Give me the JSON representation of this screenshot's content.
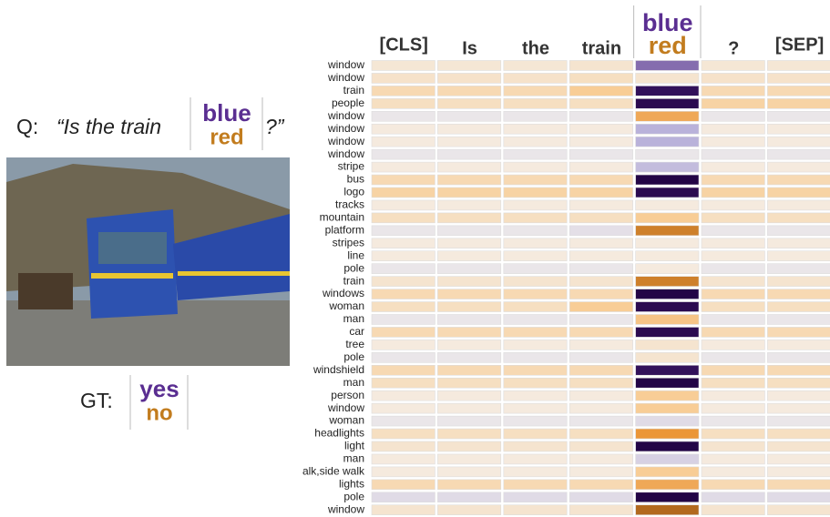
{
  "question": {
    "prefix": "Q:",
    "text": "“Is the train",
    "options": [
      "blue",
      "red"
    ],
    "suffix": "?”"
  },
  "ground_truth": {
    "label": "GT:",
    "options": [
      "yes",
      "no"
    ]
  },
  "chart_data": {
    "type": "heatmap",
    "columns": [
      "[CLS]",
      "Is",
      "the",
      "train",
      [
        "blue",
        "red"
      ],
      "?",
      "[SEP]"
    ],
    "rows": [
      "window",
      "window",
      "train",
      "people",
      "window",
      "window",
      "window",
      "window",
      "stripe",
      "bus",
      "logo",
      "tracks",
      "mountain",
      "platform",
      "stripes",
      "line",
      "pole",
      "train",
      "windows",
      "woman",
      "man",
      "car",
      "tree",
      "pole",
      "windshield",
      "man",
      "person",
      "window",
      "woman",
      "headlights",
      "light",
      "man",
      "alk,side walk",
      "lights",
      "pole",
      "window"
    ],
    "values": [
      [
        0.08,
        0.08,
        0.08,
        0.1,
        -0.5,
        0.08,
        0.08
      ],
      [
        0.12,
        0.12,
        0.12,
        0.15,
        0.1,
        0.12,
        0.12
      ],
      [
        0.2,
        0.2,
        0.2,
        0.3,
        -0.9,
        0.2,
        0.2
      ],
      [
        0.15,
        0.15,
        0.15,
        0.15,
        -0.95,
        0.25,
        0.25
      ],
      [
        -0.05,
        -0.05,
        -0.05,
        -0.05,
        0.5,
        -0.05,
        -0.05
      ],
      [
        0.05,
        0.05,
        0.05,
        0.05,
        -0.3,
        0.05,
        0.05
      ],
      [
        0.05,
        0.05,
        0.05,
        0.05,
        -0.3,
        0.05,
        0.05
      ],
      [
        -0.05,
        -0.05,
        -0.05,
        -0.05,
        -0.05,
        -0.05,
        -0.05
      ],
      [
        0.05,
        0.05,
        0.05,
        0.05,
        -0.25,
        0.05,
        0.05
      ],
      [
        0.2,
        0.2,
        0.2,
        0.2,
        -1,
        0.2,
        0.2
      ],
      [
        0.25,
        0.25,
        0.25,
        0.25,
        -0.95,
        0.25,
        0.25
      ],
      [
        0.05,
        0.05,
        0.05,
        0.05,
        0.05,
        0.05,
        0.05
      ],
      [
        0.15,
        0.15,
        0.15,
        0.15,
        0.3,
        0.15,
        0.15
      ],
      [
        -0.05,
        -0.05,
        -0.05,
        -0.08,
        0.7,
        -0.05,
        -0.05
      ],
      [
        0.05,
        0.05,
        0.05,
        0.05,
        0.05,
        0.05,
        0.05
      ],
      [
        0.05,
        0.05,
        0.05,
        0.05,
        0.05,
        0.05,
        0.05
      ],
      [
        -0.05,
        -0.05,
        -0.05,
        -0.05,
        0.05,
        -0.05,
        -0.05
      ],
      [
        0.1,
        0.1,
        0.1,
        0.1,
        0.7,
        0.1,
        0.1
      ],
      [
        0.2,
        0.2,
        0.2,
        0.2,
        -1,
        0.2,
        0.2
      ],
      [
        0.15,
        0.15,
        0.15,
        0.3,
        -0.95,
        0.15,
        0.15
      ],
      [
        -0.05,
        -0.05,
        -0.05,
        -0.05,
        0.35,
        -0.05,
        -0.05
      ],
      [
        0.2,
        0.2,
        0.2,
        0.2,
        -0.95,
        0.2,
        0.2
      ],
      [
        0.05,
        0.05,
        0.05,
        0.05,
        0.1,
        0.05,
        0.05
      ],
      [
        -0.05,
        -0.05,
        -0.05,
        -0.05,
        0.1,
        -0.05,
        -0.05
      ],
      [
        0.2,
        0.2,
        0.2,
        0.2,
        -0.9,
        0.2,
        0.2
      ],
      [
        0.15,
        0.15,
        0.15,
        0.15,
        -1,
        0.15,
        0.15
      ],
      [
        0.05,
        0.05,
        0.05,
        0.05,
        0.3,
        0.05,
        0.05
      ],
      [
        0.05,
        0.05,
        0.05,
        0.05,
        0.3,
        0.05,
        0.05
      ],
      [
        -0.05,
        -0.05,
        -0.05,
        -0.05,
        -0.1,
        -0.05,
        -0.05
      ],
      [
        0.15,
        0.15,
        0.15,
        0.15,
        0.6,
        0.15,
        0.15
      ],
      [
        0.1,
        0.1,
        0.1,
        0.1,
        -1,
        0.1,
        0.1
      ],
      [
        0.05,
        0.05,
        0.05,
        0.05,
        -0.15,
        0.05,
        0.05
      ],
      [
        0.05,
        0.05,
        0.05,
        0.05,
        0.3,
        0.05,
        0.05
      ],
      [
        0.2,
        0.2,
        0.2,
        0.2,
        0.5,
        0.2,
        0.2
      ],
      [
        -0.1,
        -0.1,
        -0.1,
        -0.1,
        -1,
        -0.1,
        -0.1
      ],
      [
        0.1,
        0.1,
        0.1,
        0.1,
        0.8,
        0.1,
        0.1
      ]
    ]
  }
}
